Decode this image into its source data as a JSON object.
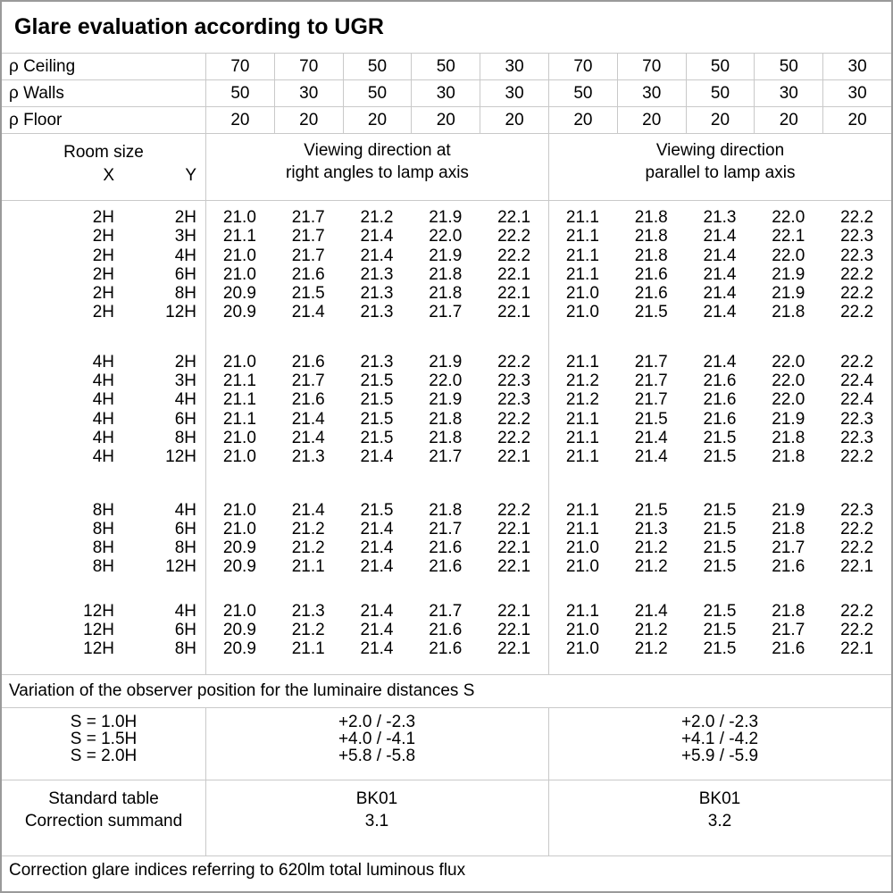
{
  "title": "Glare evaluation according to UGR",
  "colors": {
    "background": "#ffffff",
    "text": "#000000",
    "grid_line": "#c9c9c9",
    "outer_border": "#9a9a9a"
  },
  "reflectance": {
    "rows": [
      {
        "label": "ρ Ceiling",
        "values": [
          "70",
          "70",
          "50",
          "50",
          "30",
          "70",
          "70",
          "50",
          "50",
          "30"
        ]
      },
      {
        "label": "ρ Walls",
        "values": [
          "50",
          "30",
          "50",
          "30",
          "30",
          "50",
          "30",
          "50",
          "30",
          "30"
        ]
      },
      {
        "label": "ρ Floor",
        "values": [
          "20",
          "20",
          "20",
          "20",
          "20",
          "20",
          "20",
          "20",
          "20",
          "20"
        ]
      }
    ]
  },
  "room_header": {
    "room_size_label": "Room size",
    "x_label": "X",
    "y_label": "Y",
    "group1_line1": "Viewing direction at",
    "group1_line2": "right angles to lamp axis",
    "group2_line1": "Viewing direction",
    "group2_line2": "parallel to lamp axis"
  },
  "ugr_table": {
    "blocks": [
      {
        "rows": [
          {
            "x": "2H",
            "y": "2H",
            "values": [
              "21.0",
              "21.7",
              "21.2",
              "21.9",
              "22.1",
              "21.1",
              "21.8",
              "21.3",
              "22.0",
              "22.2"
            ]
          },
          {
            "x": "2H",
            "y": "3H",
            "values": [
              "21.1",
              "21.7",
              "21.4",
              "22.0",
              "22.2",
              "21.1",
              "21.8",
              "21.4",
              "22.1",
              "22.3"
            ]
          },
          {
            "x": "2H",
            "y": "4H",
            "values": [
              "21.0",
              "21.7",
              "21.4",
              "21.9",
              "22.2",
              "21.1",
              "21.8",
              "21.4",
              "22.0",
              "22.3"
            ]
          },
          {
            "x": "2H",
            "y": "6H",
            "values": [
              "21.0",
              "21.6",
              "21.3",
              "21.8",
              "22.1",
              "21.1",
              "21.6",
              "21.4",
              "21.9",
              "22.2"
            ]
          },
          {
            "x": "2H",
            "y": "8H",
            "values": [
              "20.9",
              "21.5",
              "21.3",
              "21.8",
              "22.1",
              "21.0",
              "21.6",
              "21.4",
              "21.9",
              "22.2"
            ]
          },
          {
            "x": "2H",
            "y": "12H",
            "values": [
              "20.9",
              "21.4",
              "21.3",
              "21.7",
              "22.1",
              "21.0",
              "21.5",
              "21.4",
              "21.8",
              "22.2"
            ]
          }
        ]
      },
      {
        "rows": [
          {
            "x": "4H",
            "y": "2H",
            "values": [
              "21.0",
              "21.6",
              "21.3",
              "21.9",
              "22.2",
              "21.1",
              "21.7",
              "21.4",
              "22.0",
              "22.2"
            ]
          },
          {
            "x": "4H",
            "y": "3H",
            "values": [
              "21.1",
              "21.7",
              "21.5",
              "22.0",
              "22.3",
              "21.2",
              "21.7",
              "21.6",
              "22.0",
              "22.4"
            ]
          },
          {
            "x": "4H",
            "y": "4H",
            "values": [
              "21.1",
              "21.6",
              "21.5",
              "21.9",
              "22.3",
              "21.2",
              "21.7",
              "21.6",
              "22.0",
              "22.4"
            ]
          },
          {
            "x": "4H",
            "y": "6H",
            "values": [
              "21.1",
              "21.4",
              "21.5",
              "21.8",
              "22.2",
              "21.1",
              "21.5",
              "21.6",
              "21.9",
              "22.3"
            ]
          },
          {
            "x": "4H",
            "y": "8H",
            "values": [
              "21.0",
              "21.4",
              "21.5",
              "21.8",
              "22.2",
              "21.1",
              "21.4",
              "21.5",
              "21.8",
              "22.3"
            ]
          },
          {
            "x": "4H",
            "y": "12H",
            "values": [
              "21.0",
              "21.3",
              "21.4",
              "21.7",
              "22.1",
              "21.1",
              "21.4",
              "21.5",
              "21.8",
              "22.2"
            ]
          }
        ]
      },
      {
        "rows": [
          {
            "x": "8H",
            "y": "4H",
            "values": [
              "21.0",
              "21.4",
              "21.5",
              "21.8",
              "22.2",
              "21.1",
              "21.5",
              "21.5",
              "21.9",
              "22.3"
            ]
          },
          {
            "x": "8H",
            "y": "6H",
            "values": [
              "21.0",
              "21.2",
              "21.4",
              "21.7",
              "22.1",
              "21.1",
              "21.3",
              "21.5",
              "21.8",
              "22.2"
            ]
          },
          {
            "x": "8H",
            "y": "8H",
            "values": [
              "20.9",
              "21.2",
              "21.4",
              "21.6",
              "22.1",
              "21.0",
              "21.2",
              "21.5",
              "21.7",
              "22.2"
            ]
          },
          {
            "x": "8H",
            "y": "12H",
            "values": [
              "20.9",
              "21.1",
              "21.4",
              "21.6",
              "22.1",
              "21.0",
              "21.2",
              "21.5",
              "21.6",
              "22.1"
            ]
          }
        ]
      },
      {
        "rows": [
          {
            "x": "12H",
            "y": "4H",
            "values": [
              "21.0",
              "21.3",
              "21.4",
              "21.7",
              "22.1",
              "21.1",
              "21.4",
              "21.5",
              "21.8",
              "22.2"
            ]
          },
          {
            "x": "12H",
            "y": "6H",
            "values": [
              "20.9",
              "21.2",
              "21.4",
              "21.6",
              "22.1",
              "21.0",
              "21.2",
              "21.5",
              "21.7",
              "22.2"
            ]
          },
          {
            "x": "12H",
            "y": "8H",
            "values": [
              "20.9",
              "21.1",
              "21.4",
              "21.6",
              "22.1",
              "21.0",
              "21.2",
              "21.5",
              "21.6",
              "22.1"
            ]
          }
        ]
      }
    ]
  },
  "variation": {
    "note": "Variation of the observer position for the luminaire distances S",
    "rows": [
      {
        "label": "S = 1.0H",
        "group1": "+2.0 / -2.3",
        "group2": "+2.0 / -2.3"
      },
      {
        "label": "S = 1.5H",
        "group1": "+4.0 / -4.1",
        "group2": "+4.1 / -4.2"
      },
      {
        "label": "S = 2.0H",
        "group1": "+5.8 / -5.8",
        "group2": "+5.9 / -5.9"
      }
    ]
  },
  "summary": {
    "rows": [
      {
        "label": "Standard table",
        "group1": "BK01",
        "group2": "BK01"
      },
      {
        "label": "Correction summand",
        "group1": "3.1",
        "group2": "3.2"
      }
    ]
  },
  "footer_note": "Correction glare indices referring to 620lm total luminous flux"
}
